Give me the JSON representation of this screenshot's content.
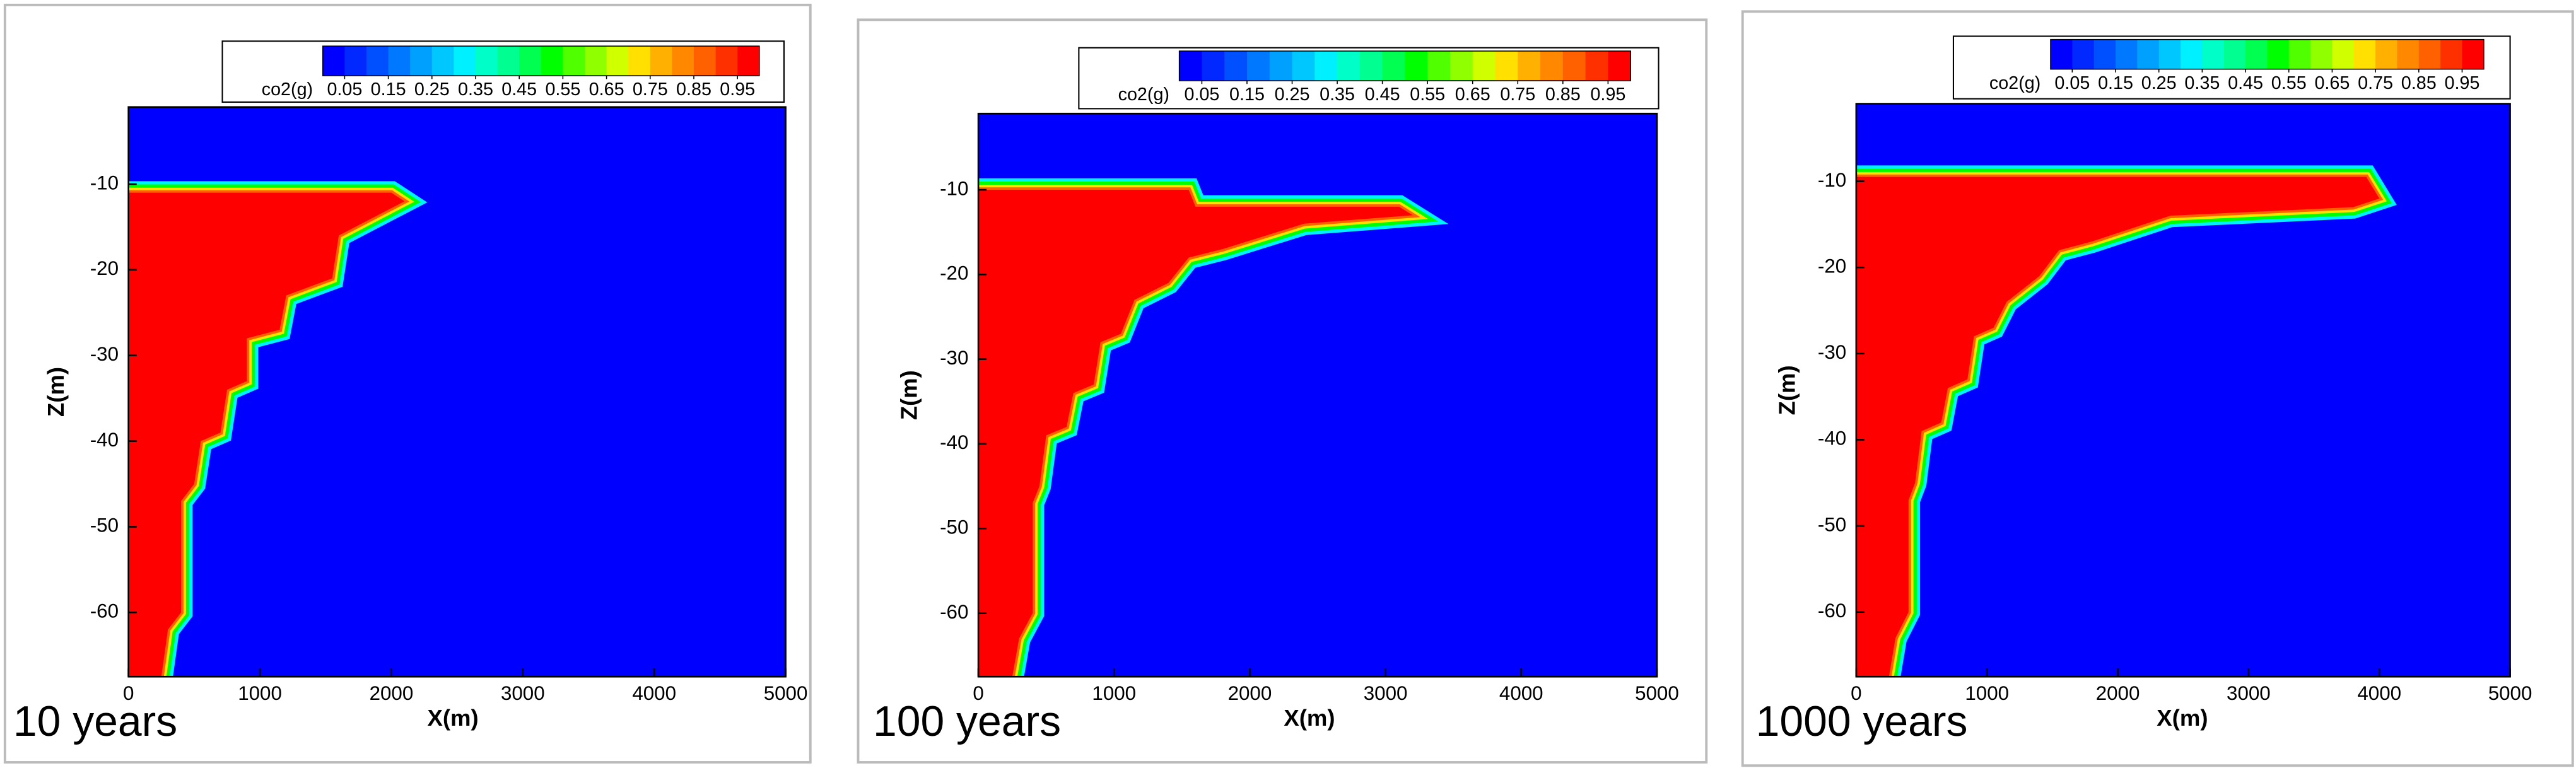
{
  "chart_data": [
    {
      "type": "contour",
      "caption": "10 years",
      "xlabel": "X(m)",
      "ylabel": "Z(m)",
      "xlim": [
        0,
        5000
      ],
      "ylim": [
        -67.5,
        -1
      ],
      "xticks": [
        0,
        1000,
        2000,
        3000,
        4000,
        5000
      ],
      "yticks": [
        -10,
        -20,
        -30,
        -40,
        -50,
        -60
      ],
      "background_color": "#0000ff",
      "colorbar": {
        "label": "co2(g)",
        "clim": [
          0,
          1
        ],
        "ticks": [
          0.05,
          0.15,
          0.25,
          0.35,
          0.45,
          0.55,
          0.65,
          0.75,
          0.85,
          0.95
        ],
        "colors": [
          "#0000ff",
          "#0028ff",
          "#0050ff",
          "#0078ff",
          "#00a0ff",
          "#00c8ff",
          "#00f0ff",
          "#00ffc8",
          "#00ff90",
          "#00ff50",
          "#00ff00",
          "#50ff00",
          "#90ff00",
          "#d0ff00",
          "#ffe000",
          "#ffb000",
          "#ff8800",
          "#ff6000",
          "#ff3000",
          "#ff0000"
        ]
      },
      "plume": {
        "color": "#ff0000",
        "x": [
          0,
          2000,
          2100,
          1600,
          1550,
          1200,
          1150,
          900,
          900,
          750,
          700,
          550,
          500,
          400,
          400,
          300,
          250,
          0
        ],
        "z": [
          -11,
          -11,
          -12,
          -16,
          -21,
          -23,
          -27,
          -28,
          -33,
          -34,
          -39,
          -40,
          -45,
          -47,
          -60,
          -62,
          -67.5,
          -67.5
        ]
      }
    },
    {
      "type": "contour",
      "caption": "100 years",
      "xlabel": "X(m)",
      "ylabel": "Z(m)",
      "xlim": [
        0,
        5000
      ],
      "ylim": [
        -67.5,
        -1
      ],
      "xticks": [
        0,
        1000,
        2000,
        3000,
        4000,
        5000
      ],
      "yticks": [
        -10,
        -20,
        -30,
        -40,
        -50,
        -60
      ],
      "background_color": "#0000ff",
      "colorbar": {
        "label": "co2(g)",
        "clim": [
          0,
          1
        ],
        "ticks": [
          0.05,
          0.15,
          0.25,
          0.35,
          0.45,
          0.55,
          0.65,
          0.75,
          0.85,
          0.95
        ],
        "colors": [
          "#0000ff",
          "#0028ff",
          "#0050ff",
          "#0078ff",
          "#00a0ff",
          "#00c8ff",
          "#00f0ff",
          "#00ffc8",
          "#00ff90",
          "#00ff50",
          "#00ff00",
          "#50ff00",
          "#90ff00",
          "#d0ff00",
          "#ffe000",
          "#ffb000",
          "#ff8800",
          "#ff6000",
          "#ff3000",
          "#ff0000"
        ]
      },
      "plume": {
        "color": "#ff0000",
        "x": [
          0,
          1550,
          1600,
          3100,
          3200,
          2400,
          1800,
          1550,
          1400,
          1150,
          1050,
          900,
          850,
          700,
          650,
          500,
          450,
          400,
          400,
          300,
          250,
          0
        ],
        "z": [
          -10,
          -10,
          -12,
          -12,
          -13,
          -14,
          -17,
          -18,
          -21,
          -23,
          -27,
          -28,
          -33,
          -34,
          -38,
          -39,
          -45,
          -47,
          -60,
          -63,
          -67.5,
          -67.5
        ]
      }
    },
    {
      "type": "contour",
      "caption": "1000 years",
      "xlabel": "X(m)",
      "ylabel": "Z(m)",
      "xlim": [
        0,
        5000
      ],
      "ylim": [
        -67.5,
        -1
      ],
      "xticks": [
        0,
        1000,
        2000,
        3000,
        4000,
        5000
      ],
      "yticks": [
        -10,
        -20,
        -30,
        -40,
        -50,
        -60
      ],
      "background_color": "#0000ff",
      "colorbar": {
        "label": "co2(g)",
        "clim": [
          0,
          1
        ],
        "ticks": [
          0.05,
          0.15,
          0.25,
          0.35,
          0.45,
          0.55,
          0.65,
          0.75,
          0.85,
          0.95
        ],
        "colors": [
          "#0000ff",
          "#0028ff",
          "#0050ff",
          "#0078ff",
          "#00a0ff",
          "#00c8ff",
          "#00f0ff",
          "#00ffc8",
          "#00ff90",
          "#00ff50",
          "#00ff00",
          "#50ff00",
          "#90ff00",
          "#d0ff00",
          "#ffe000",
          "#ffb000",
          "#ff8800",
          "#ff6000",
          "#ff3000",
          "#ff0000"
        ]
      },
      "plume": {
        "color": "#ff0000",
        "x": [
          0,
          3900,
          4000,
          3800,
          2400,
          1800,
          1550,
          1400,
          1150,
          1050,
          900,
          850,
          700,
          650,
          500,
          450,
          400,
          400,
          300,
          250,
          0
        ],
        "z": [
          -9.5,
          -9.5,
          -12,
          -13,
          -14,
          -17,
          -18,
          -21,
          -24,
          -27,
          -28,
          -33,
          -34,
          -38,
          -39,
          -45,
          -47,
          -60,
          -63,
          -67.5,
          -67.5
        ]
      }
    }
  ]
}
